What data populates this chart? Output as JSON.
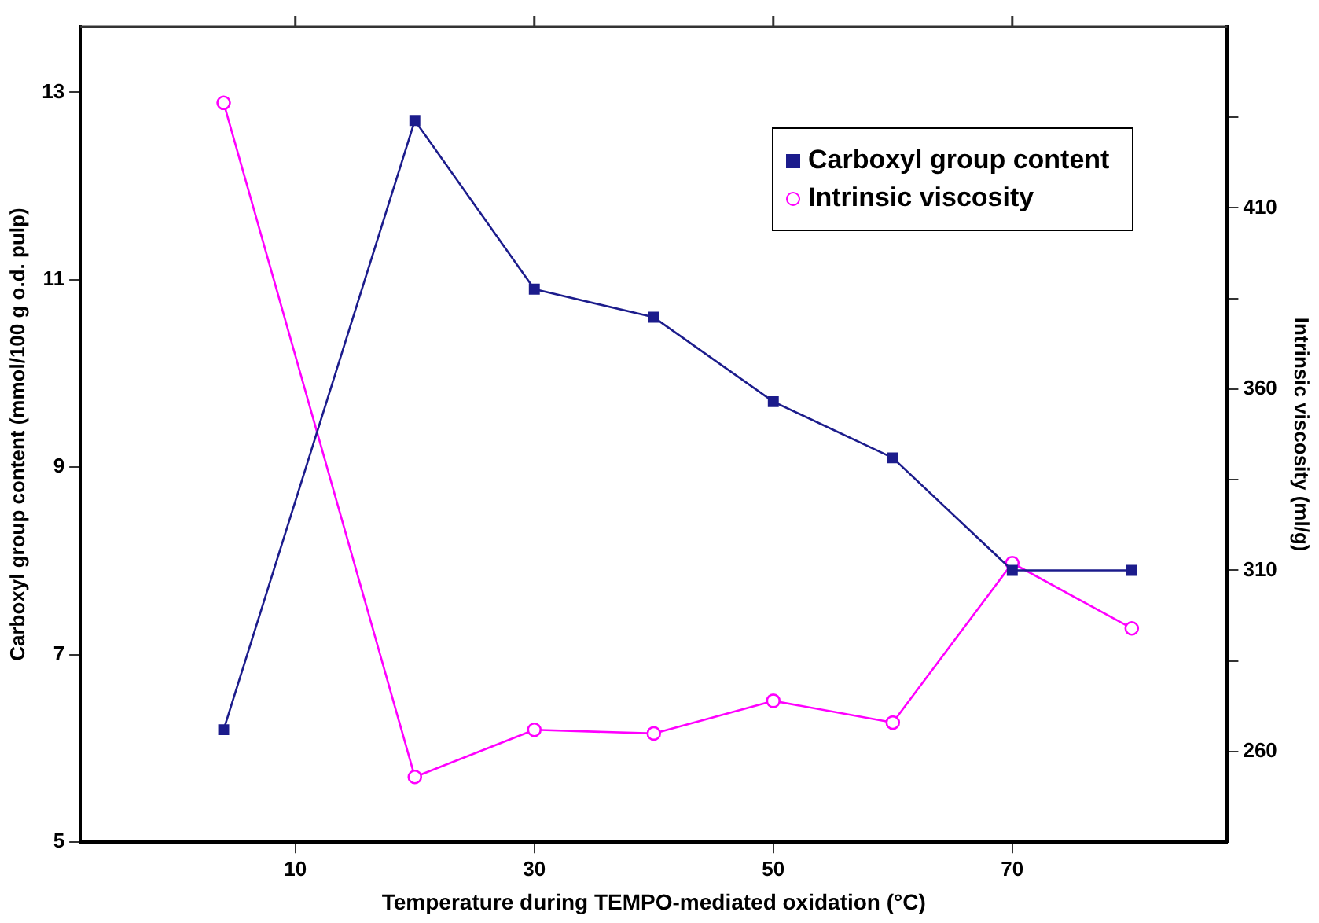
{
  "chart_data": {
    "type": "line",
    "xlabel": "Temperature during TEMPO-mediated oxidation (°C)",
    "ylabel": "Carboxyl group content (mmol/100 g o.d. pulp)",
    "y2label": "Intrinsic viscosity (ml/g)",
    "xlim": [
      -8,
      88
    ],
    "xticks": [
      10,
      30,
      50,
      70
    ],
    "ylim": [
      5,
      13.7
    ],
    "yticks": [
      5,
      7,
      9,
      11,
      13
    ],
    "y2lim": [
      235,
      460
    ],
    "y2ticks": [
      260,
      {
        "value": 285,
        "label": null
      },
      310,
      {
        "value": 335,
        "label": null
      },
      360,
      {
        "value": 385,
        "label": null
      },
      410,
      {
        "value": 435,
        "label": null
      }
    ],
    "grid": false,
    "legend": "top right",
    "line_style": "solid",
    "series": [
      {
        "name": "Carboxyl group content",
        "color": "#1c1c8c",
        "marker": "square",
        "x": [
          4,
          20,
          30,
          40,
          50,
          60,
          70,
          80
        ],
        "values": [
          6.2,
          12.7,
          10.9,
          10.6,
          9.7,
          9.1,
          7.9,
          7.9
        ]
      },
      {
        "name": "Intrinsic viscosity",
        "color": "#ff00ff",
        "marker": "circle",
        "axis": "y2",
        "x": [
          4,
          20,
          30,
          40,
          50,
          60,
          70,
          80
        ],
        "values": [
          439,
          253,
          266,
          265,
          274,
          268,
          312,
          294
        ]
      }
    ]
  }
}
